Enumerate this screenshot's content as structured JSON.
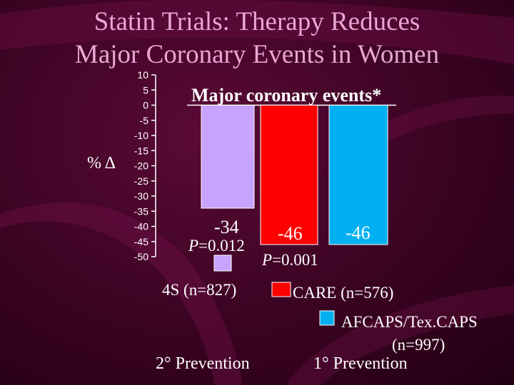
{
  "title": {
    "line1": "Statin Trials: Therapy Reduces",
    "line2": "Major Coronary Events in Women"
  },
  "colors": {
    "title": "#e8a6d4",
    "bar_4s": "#c8a2ff",
    "bar_care": "#ff0000",
    "bar_afcaps": "#00b0f0"
  },
  "chart_data": {
    "type": "bar",
    "title": "Major coronary events*",
    "ylabel": "% Δ",
    "xlabel": "",
    "ylim": [
      -50,
      10
    ],
    "yticks": [
      "10",
      "5",
      "0",
      "-5",
      "-10",
      "-15",
      "-20",
      "-25",
      "-30",
      "-35",
      "-40",
      "-45",
      "-50"
    ],
    "categories": [
      "4S (n=827)",
      "CARE (n=576)",
      "AFCAPS/TexCAPS (n=997)"
    ],
    "values": [
      -34,
      -46,
      -46
    ],
    "value_labels": [
      "-34",
      "-46",
      "-46"
    ],
    "p_values": [
      {
        "prefix": "P",
        "text": "=0.012"
      },
      {
        "prefix": "P",
        "text": "=0.001"
      },
      null
    ],
    "legend": [
      {
        "label": "4S (n=827)",
        "color": "#c8a2ff"
      },
      {
        "label": "CARE (n=576)",
        "color": "#ff0000"
      },
      {
        "label_line1": "AFCAPS/Tex.CAPS",
        "label_line2": "(n=997)",
        "color": "#00b0f0"
      }
    ],
    "groups": [
      "2° Prevention",
      "1° Prevention"
    ]
  }
}
